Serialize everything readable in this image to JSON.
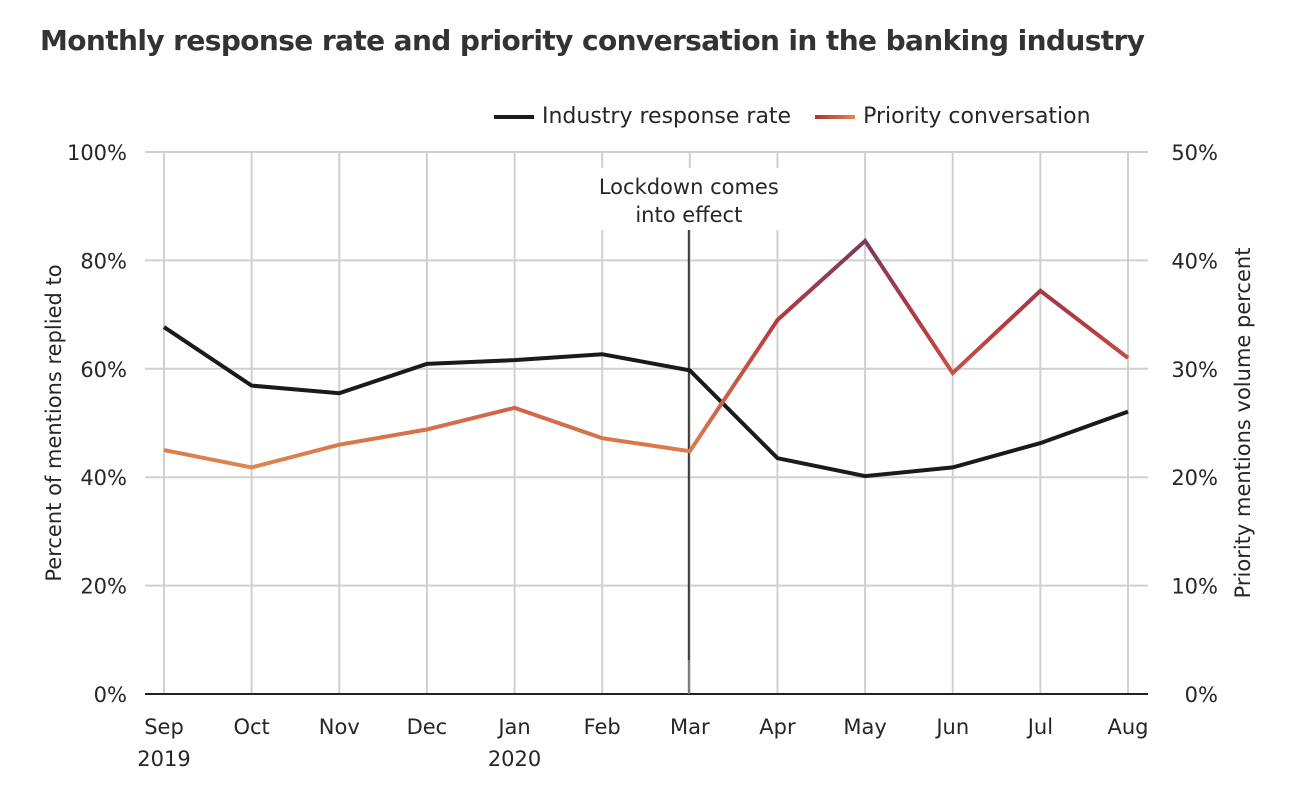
{
  "chart_data": {
    "type": "line",
    "title": "Monthly response rate and priority conversation in the banking industry",
    "categories": [
      "Sep",
      "Oct",
      "Nov",
      "Dec",
      "Jan",
      "Feb",
      "Mar",
      "Apr",
      "May",
      "Jun",
      "Jul",
      "Aug"
    ],
    "category_sublabels": [
      "2019",
      "",
      "",
      "",
      "2020",
      "",
      "",
      "",
      "",
      "",
      "",
      ""
    ],
    "xlabel": "",
    "ylabel": "Percent of mentions replied to",
    "ylabel_right": "Priority mentions volume percent",
    "ylim": [
      0,
      100
    ],
    "ylim_right": [
      0,
      50
    ],
    "yticks": [
      "0%",
      "20%",
      "40%",
      "60%",
      "80%",
      "100%"
    ],
    "yticks_right": [
      "0%",
      "10%",
      "20%",
      "30%",
      "40%",
      "50%"
    ],
    "grid": true,
    "legend_position": "top-right",
    "series": [
      {
        "name": "Industry response rate",
        "axis": "left",
        "color": "#1a1a1a",
        "values": [
          67.7,
          56.9,
          55.5,
          60.9,
          61.6,
          62.7,
          59.7,
          43.5,
          40.2,
          41.8,
          46.3,
          52.1
        ]
      },
      {
        "name": "Priority conversation",
        "axis": "right",
        "color_gradient": [
          "#7a3a5c",
          "#b5393f",
          "#d0674a",
          "#e0874d"
        ],
        "values": [
          22.5,
          20.9,
          23.0,
          24.4,
          26.4,
          23.6,
          22.4,
          34.5,
          41.8,
          29.6,
          37.2,
          31.0
        ]
      }
    ],
    "annotations": [
      {
        "label_lines": [
          "Lockdown comes",
          "into effect"
        ],
        "at_category": "Mar"
      }
    ]
  }
}
